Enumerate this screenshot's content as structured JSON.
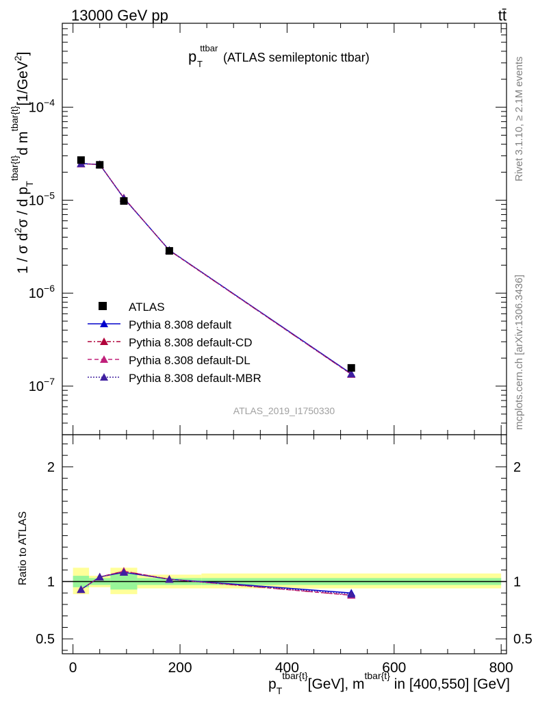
{
  "header": {
    "energy_label": "13000 GeV pp",
    "process_label": "tt̄"
  },
  "side_labels": {
    "rivet": "Rivet 3.1.10, ≥ 2.1M events",
    "mcplots": "mcplots.cern.ch [arXiv:1306.3436]"
  },
  "chart_data": {
    "type": "line",
    "title_main": "p",
    "title_sup": "ttbar",
    "title_sub": "T",
    "title_rest": "(ATLAS semileptonic ttbar)",
    "analysis_id": "ATLAS_2019_I1750330",
    "xlabel": "p_T^{tbar{t}}[GeV], m^{tbar{t}} in [400,550] [GeV]",
    "ylabel": "1 / σ d²σ / d p_T^{tbar{t}}d m^{tbar{t}} [1/GeV²]",
    "ratio_ylabel": "Ratio to ATLAS",
    "xlim": [
      -20,
      810
    ],
    "ylim": [
      3e-08,
      0.0008
    ],
    "yscale": "log",
    "ratio_ylim": [
      0.37,
      2.28
    ],
    "x_ticks": [
      "0",
      "200",
      "400",
      "600",
      "800"
    ],
    "y_ticks": [
      "10^-7",
      "10^-6",
      "10^-5",
      "10^-4"
    ],
    "ratio_ticks": [
      "0.5",
      "1",
      "2"
    ],
    "legend_position": "lower-left",
    "data": {
      "name": "ATLAS",
      "x": [
        15,
        50,
        95,
        180,
        520
      ],
      "y": [
        2.7e-05,
        2.4e-05,
        9.8e-06,
        2.85e-06,
        1.57e-07
      ],
      "bins": [
        [
          0,
          30
        ],
        [
          30,
          70
        ],
        [
          70,
          120
        ],
        [
          120,
          240
        ],
        [
          240,
          800
        ]
      ],
      "band_stat": [
        [
          0.95,
          1.05
        ],
        [
          0.97,
          1.03
        ],
        [
          0.93,
          1.07
        ],
        [
          0.97,
          1.03
        ],
        [
          0.97,
          1.03
        ]
      ],
      "band_total": [
        [
          0.89,
          1.12
        ],
        [
          0.95,
          1.05
        ],
        [
          0.89,
          1.12
        ],
        [
          0.94,
          1.06
        ],
        [
          0.94,
          1.07
        ]
      ]
    },
    "series": [
      {
        "name": "Pythia 8.308 default",
        "color": "#0000cc",
        "dash": "",
        "x": [
          15,
          50,
          95,
          180,
          520
        ],
        "y": [
          2.48e-05,
          2.42e-05,
          1.05e-05,
          2.9e-06,
          1.36e-07
        ],
        "ratio": [
          0.93,
          1.04,
          1.08,
          1.02,
          0.9
        ]
      },
      {
        "name": "Pythia 8.308 default-CD",
        "color": "#b0003a",
        "dash": "6,3,2,3",
        "x": [
          15,
          50,
          95,
          180,
          520
        ],
        "y": [
          2.46e-05,
          2.42e-05,
          1.06e-05,
          2.88e-06,
          1.34e-07
        ],
        "ratio": [
          0.93,
          1.04,
          1.09,
          1.02,
          0.88
        ]
      },
      {
        "name": "Pythia 8.308 default-DL",
        "color": "#c0207a",
        "dash": "6,4",
        "x": [
          15,
          50,
          95,
          180,
          520
        ],
        "y": [
          2.46e-05,
          2.42e-05,
          1.06e-05,
          2.88e-06,
          1.34e-07
        ],
        "ratio": [
          0.93,
          1.04,
          1.09,
          1.02,
          0.88
        ]
      },
      {
        "name": "Pythia 8.308 default-MBR",
        "color": "#4020a0",
        "dash": "2,2",
        "x": [
          15,
          50,
          95,
          180,
          520
        ],
        "y": [
          2.47e-05,
          2.42e-05,
          1.05e-05,
          2.9e-06,
          1.35e-07
        ],
        "ratio": [
          0.93,
          1.04,
          1.08,
          1.02,
          0.89
        ]
      }
    ]
  }
}
